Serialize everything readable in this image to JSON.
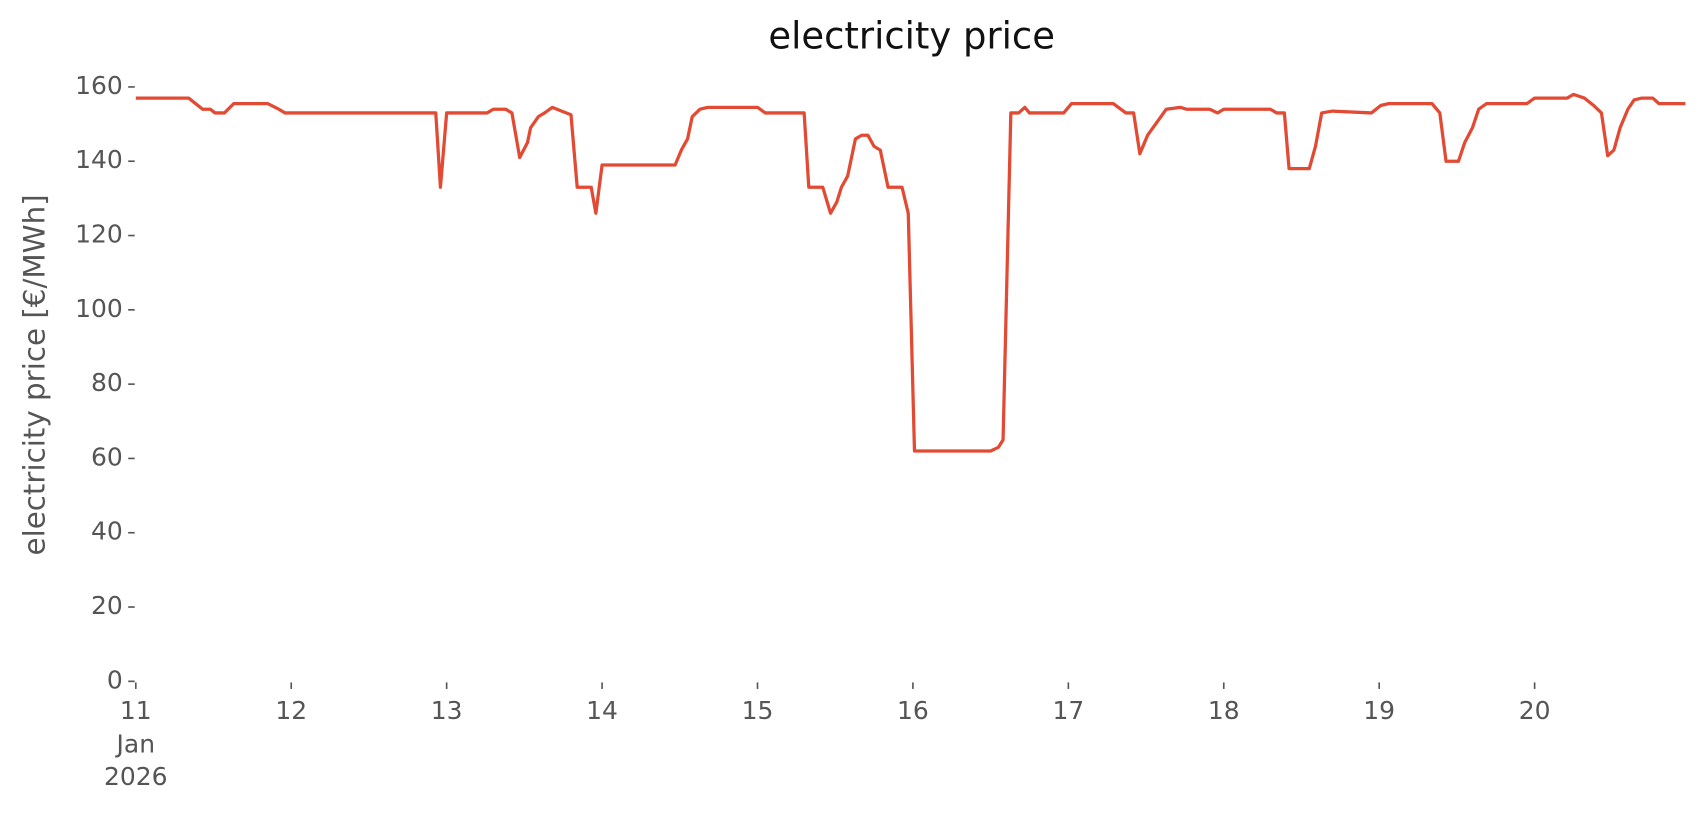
{
  "chart_data": {
    "type": "line",
    "title": "electricity price",
    "y_label": "electricity price [€/MWh]",
    "color": "#e24a33",
    "x": [
      11.0,
      11.34,
      11.43,
      11.48,
      11.51,
      11.57,
      11.63,
      11.74,
      11.85,
      11.92,
      11.96,
      12.93,
      12.96,
      13.0,
      13.26,
      13.3,
      13.38,
      13.42,
      13.47,
      13.52,
      13.54,
      13.59,
      13.63,
      13.68,
      13.74,
      13.8,
      13.84,
      13.93,
      13.96,
      14.0,
      14.47,
      14.51,
      14.55,
      14.58,
      14.63,
      14.68,
      15.0,
      15.05,
      15.3,
      15.33,
      15.42,
      15.47,
      15.51,
      15.54,
      15.58,
      15.63,
      15.67,
      15.71,
      15.75,
      15.79,
      15.84,
      15.93,
      15.97,
      16.01,
      16.5,
      16.55,
      16.58,
      16.63,
      16.68,
      16.72,
      16.75,
      16.97,
      17.02,
      17.29,
      17.37,
      17.42,
      17.46,
      17.51,
      17.63,
      17.72,
      17.76,
      17.91,
      17.96,
      18.0,
      18.3,
      18.34,
      18.39,
      18.42,
      18.55,
      18.59,
      18.63,
      18.7,
      18.95,
      19.01,
      19.06,
      19.34,
      19.39,
      19.43,
      19.51,
      19.55,
      19.6,
      19.64,
      19.69,
      19.95,
      20.0,
      20.21,
      20.25,
      20.32,
      20.38,
      20.43,
      20.47,
      20.51,
      20.55,
      20.6,
      20.64,
      20.69,
      20.76,
      20.8,
      20.97
    ],
    "values": [
      157,
      157,
      154,
      154,
      153,
      153,
      155.5,
      155.5,
      155.5,
      154,
      153,
      153,
      133,
      153,
      153,
      154,
      154,
      153,
      141,
      145,
      149,
      152,
      153,
      154.5,
      153.5,
      152.5,
      133,
      133,
      126,
      139,
      139,
      143,
      146,
      152,
      154,
      154.5,
      154.5,
      153,
      153,
      133,
      133,
      126,
      129,
      133,
      136,
      146,
      147,
      147,
      144,
      143,
      133,
      133,
      126,
      62,
      62,
      63,
      65,
      153,
      153,
      154.5,
      153,
      153,
      155.5,
      155.5,
      153,
      153,
      142,
      147,
      154,
      154.5,
      154,
      154,
      153,
      154,
      154,
      153,
      153,
      138,
      138,
      144,
      153,
      153.5,
      153,
      155,
      155.5,
      155.5,
      153,
      140,
      140,
      145,
      149,
      154,
      155.5,
      155.5,
      157,
      157,
      158,
      157,
      155,
      153,
      141.5,
      143,
      149,
      154,
      156.5,
      157,
      157,
      155.5,
      155.5
    ],
    "xlim": [
      11,
      20.97
    ],
    "xticks": [
      11,
      12,
      13,
      14,
      15,
      16,
      17,
      18,
      19,
      20
    ],
    "xtick_sublabels": [
      "Jan",
      "2026"
    ],
    "ylim": [
      0,
      160
    ],
    "yticks": [
      0,
      20,
      40,
      60,
      80,
      100,
      120,
      140,
      160
    ]
  }
}
